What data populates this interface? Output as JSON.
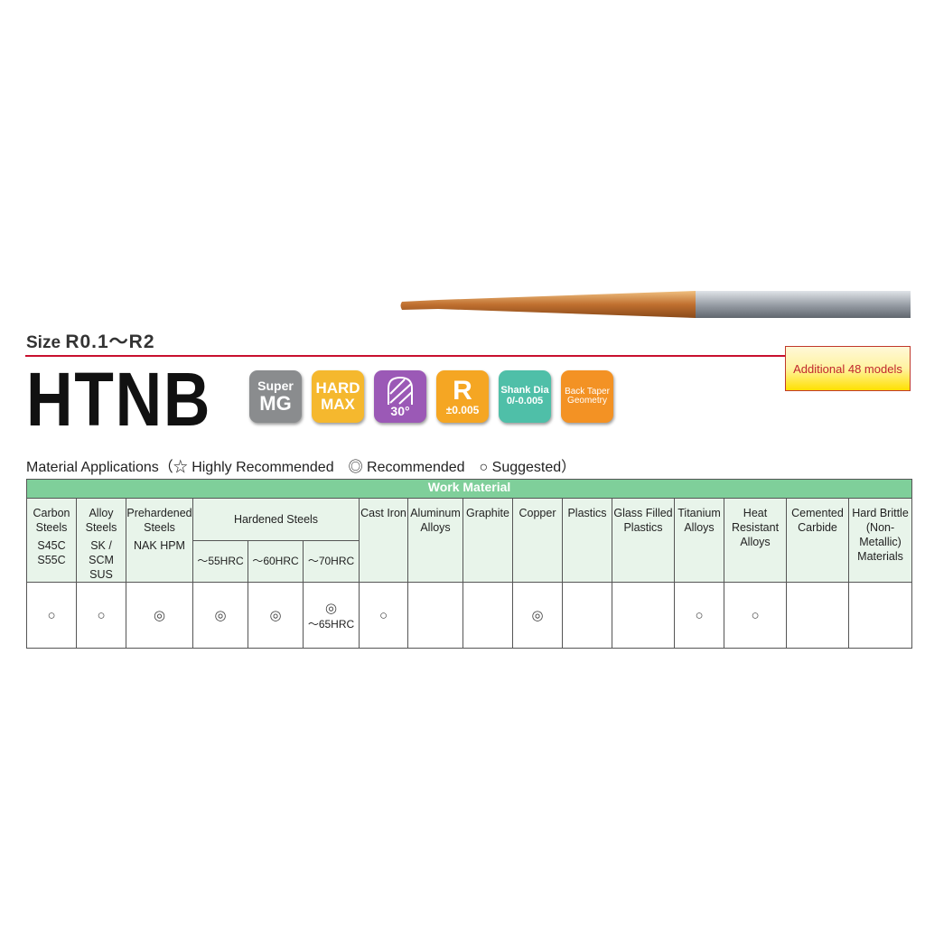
{
  "size_label": "Size",
  "size_value": "R0.1～R2",
  "title": "HTNB",
  "additional": "Additional 48 models",
  "badges": [
    {
      "l1": "Super",
      "l2": "MG",
      "color": "#8a8c8e"
    },
    {
      "l1": "HARD",
      "l2": "MAX",
      "color": "#f5b82e"
    },
    {
      "l1": "30°",
      "color": "#9b59b6",
      "icon": "helix-angle-icon"
    },
    {
      "l1": "R",
      "l2": "±0.005",
      "color": "#f5a623"
    },
    {
      "l1": "Shank Dia",
      "l2": "0/-0.005",
      "color": "#4fbfa8"
    },
    {
      "l1": "Back Taper",
      "l2": "Geometry",
      "color": "#f39224"
    }
  ],
  "material_applications": "Material Applications（☆ Highly Recommended　◎ Recommended　○ Suggested）",
  "table": {
    "group": "Work Material",
    "columns": [
      {
        "name": "Carbon Steels",
        "sub": "S45C S55C",
        "mark": "○"
      },
      {
        "name": "Alloy Steels",
        "sub": "SK / SCM SUS",
        "mark": "○"
      },
      {
        "name": "Prehardened Steels",
        "sub": "NAK HPM",
        "mark": "◎"
      },
      {
        "name": "～55HRC",
        "mark": "◎"
      },
      {
        "name": "～60HRC",
        "mark": "◎"
      },
      {
        "name": "～70HRC",
        "mark": "◎",
        "note": "～65HRC"
      },
      {
        "name": "Cast Iron",
        "mark": "○"
      },
      {
        "name": "Aluminum Alloys",
        "mark": ""
      },
      {
        "name": "Graphite",
        "mark": ""
      },
      {
        "name": "Copper",
        "mark": "◎"
      },
      {
        "name": "Plastics",
        "mark": ""
      },
      {
        "name": "Glass Filled Plastics",
        "mark": ""
      },
      {
        "name": "Titanium Alloys",
        "mark": "○"
      },
      {
        "name": "Heat Resistant Alloys",
        "mark": "○"
      },
      {
        "name": "Cemented Carbide",
        "mark": ""
      },
      {
        "name": "Hard Brittle (Non-Metallic) Materials",
        "mark": ""
      }
    ],
    "hardened_group": "Hardened Steels"
  }
}
